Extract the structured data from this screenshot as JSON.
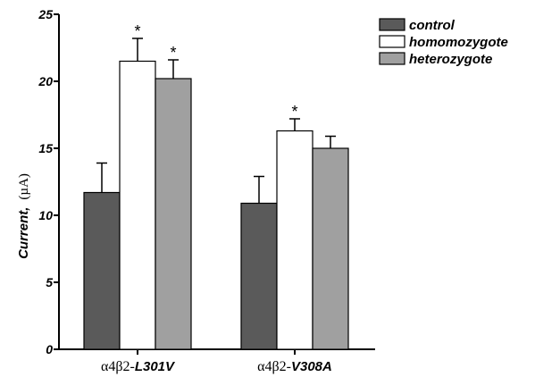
{
  "chart_data": {
    "type": "bar",
    "title": "",
    "ylabel": "Current,",
    "ylabel_unit": "(µA)",
    "ylim": [
      0,
      25
    ],
    "yticks": [
      "0",
      "5",
      "10",
      "15",
      "20",
      "25"
    ],
    "grid": false,
    "legend_position": "top-right",
    "categories": [
      {
        "prefix": "α4β2-",
        "suffix": "L301V"
      },
      {
        "prefix": "α4β2-",
        "suffix": "V308A"
      }
    ],
    "series": [
      {
        "name": "control",
        "color": "#5a5a5a",
        "values": [
          11.7,
          10.9
        ],
        "errors": [
          2.2,
          2.0
        ],
        "significant": [
          false,
          false
        ]
      },
      {
        "name": "homomozygote",
        "color": "#ffffff",
        "values": [
          21.5,
          16.3
        ],
        "errors": [
          1.7,
          0.9
        ],
        "significant": [
          true,
          true
        ]
      },
      {
        "name": "heterozygote",
        "color": "#a0a0a0",
        "values": [
          20.2,
          15.0
        ],
        "errors": [
          1.4,
          0.9
        ],
        "significant": [
          true,
          false
        ]
      }
    ],
    "significance_marker": "*"
  }
}
